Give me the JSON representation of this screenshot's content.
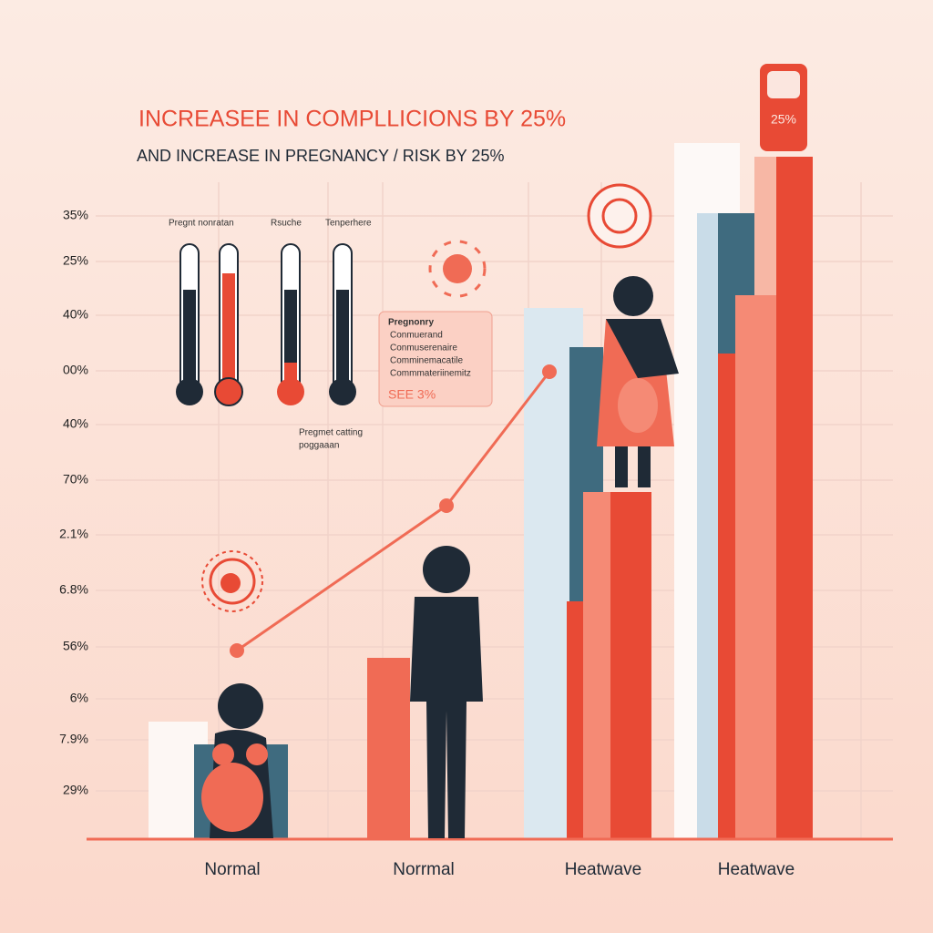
{
  "header": {
    "title": "INCREASEE IN  COMPLLICIONS BY 25%",
    "subtitle": "AND INCREASE IN PREGNANCY / RISK BY 25%",
    "badge": "25%"
  },
  "axis_labels": [
    "35%",
    "25%",
    "40%",
    "00%",
    "40%",
    "70%",
    "2.1%",
    "6.8%",
    "56%",
    "6%",
    "7.9%",
    "29%"
  ],
  "categories": [
    "Normal",
    "Norrmal",
    "Heatwave",
    "Heatwave"
  ],
  "thermometers": {
    "labels": [
      "Pregnt nonratan",
      "Rsuche",
      "Tenperhere"
    ]
  },
  "callout": {
    "title": "Pregnonry",
    "lines": [
      "Conmuerand",
      "Conmuserenaire",
      "Comminemacatile",
      "Commmateriinemitz"
    ],
    "footer": "SEE  3%"
  },
  "note": {
    "lines": [
      "Pregmet catting",
      "poggaaan"
    ]
  }
}
